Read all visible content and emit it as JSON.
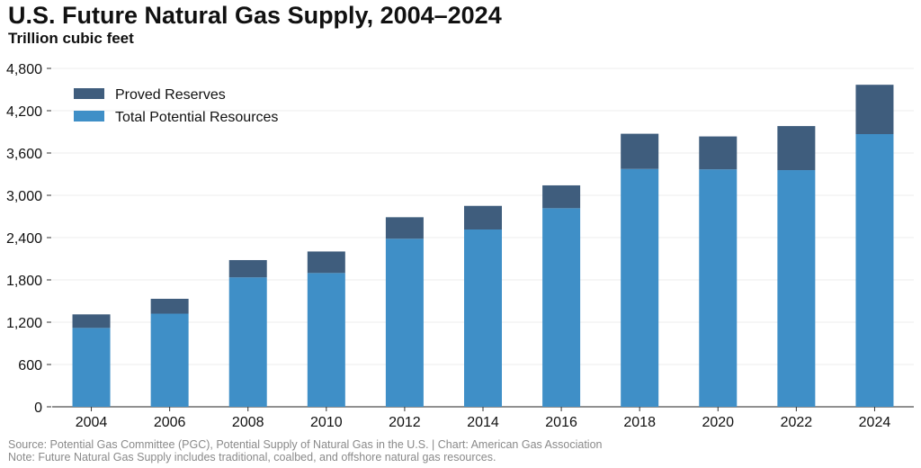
{
  "header": {
    "title": "U.S. Future Natural Gas Supply, 2004–2024",
    "subtitle": "Trillion cubic feet"
  },
  "footer": {
    "source": "Source: Potential Gas Committee (PGC), Potential Supply of Natural Gas in the U.S. | Chart: American Gas Association",
    "note": "Note: Future Natural Gas Supply includes traditional, coalbed, and offshore natural gas resources."
  },
  "colors": {
    "proved_reserves": "#3f5d7d",
    "total_potential_resources": "#3f8fc7",
    "gridline": "#ececec",
    "axis_text": "#111111"
  },
  "chart_data": {
    "type": "bar",
    "stacked": true,
    "title": "U.S. Future Natural Gas Supply, 2004–2024",
    "subtitle": "Trillion cubic feet",
    "categories": [
      "2004",
      "2006",
      "2008",
      "2010",
      "2012",
      "2014",
      "2016",
      "2018",
      "2020",
      "2022",
      "2024"
    ],
    "series": [
      {
        "name": "Total Potential Resources",
        "values": [
          1119,
          1321,
          1836,
          1898,
          2384,
          2515,
          2817,
          3374,
          3368,
          3357,
          3868
        ]
      },
      {
        "name": "Proved Reserves",
        "values": [
          192,
          211,
          245,
          305,
          305,
          335,
          324,
          499,
          467,
          625,
          700
        ]
      }
    ],
    "yticks": [
      0,
      600,
      1200,
      1800,
      2400,
      3000,
      3600,
      4200,
      4800
    ],
    "ytick_labels": [
      "0",
      "600",
      "1,200",
      "1,800",
      "2,400",
      "3,000",
      "3,600",
      "4,200",
      "4,800"
    ],
    "ylim": [
      0,
      4800
    ],
    "grid": true,
    "legend": {
      "position": "top-left",
      "entries": [
        "Proved Reserves",
        "Total Potential Resources"
      ]
    }
  }
}
